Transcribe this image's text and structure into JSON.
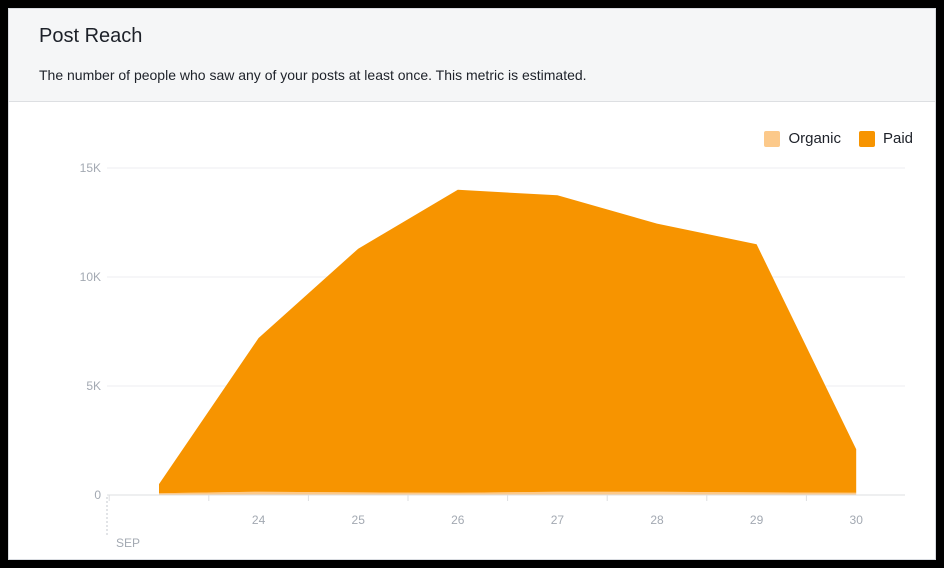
{
  "header": {
    "title": "Post Reach",
    "subtitle": "The number of people who saw any of your posts at least once. This metric is estimated."
  },
  "chart_data": {
    "type": "area",
    "stacked": true,
    "x": [
      "23",
      "24",
      "25",
      "26",
      "27",
      "28",
      "29",
      "30"
    ],
    "x_tick_labels": [
      "24",
      "25",
      "26",
      "27",
      "28",
      "29",
      "30"
    ],
    "x_month_label": "SEP",
    "y_ticks": [
      "0",
      "5K",
      "10K",
      "15K"
    ],
    "ylim": [
      0,
      15000
    ],
    "grid": true,
    "legend_position": "top-right",
    "series": [
      {
        "name": "Organic",
        "color": "#fcc98a",
        "values": [
          80,
          150,
          120,
          100,
          150,
          150,
          120,
          100
        ]
      },
      {
        "name": "Paid",
        "color": "#f79400",
        "values": [
          420,
          7050,
          11180,
          13900,
          13600,
          12300,
          11380,
          2000
        ]
      }
    ]
  }
}
